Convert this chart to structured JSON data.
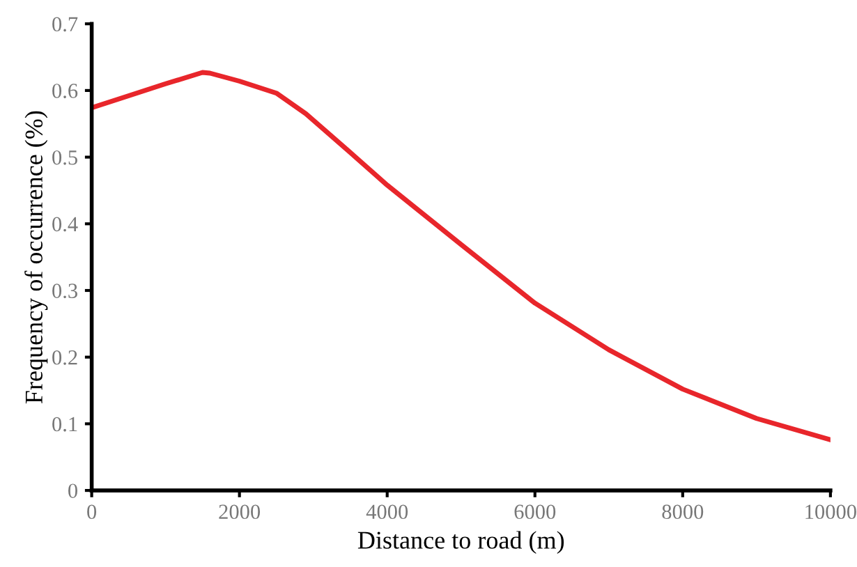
{
  "chart_data": {
    "type": "line",
    "xlabel": "Distance to road (m)",
    "ylabel": "Frequency of occurrence (%)",
    "xlim": [
      0,
      10000
    ],
    "xticks": [
      0,
      2000,
      4000,
      6000,
      8000,
      10000
    ],
    "ylim": [
      0,
      0.7
    ],
    "yticks": [
      0,
      0.1,
      0.2,
      0.3,
      0.4,
      0.5,
      0.6,
      0.7
    ],
    "grid": false,
    "series": [
      {
        "color": "#e8262b",
        "x": [
          0,
          500,
          1000,
          1500,
          1600,
          2000,
          2500,
          2900,
          3500,
          4000,
          5000,
          6000,
          7000,
          8000,
          9000,
          10000
        ],
        "values": [
          0.574,
          0.592,
          0.61,
          0.627,
          0.626,
          0.614,
          0.596,
          0.565,
          0.507,
          0.458,
          0.369,
          0.281,
          0.211,
          0.152,
          0.108,
          0.076
        ]
      }
    ]
  }
}
